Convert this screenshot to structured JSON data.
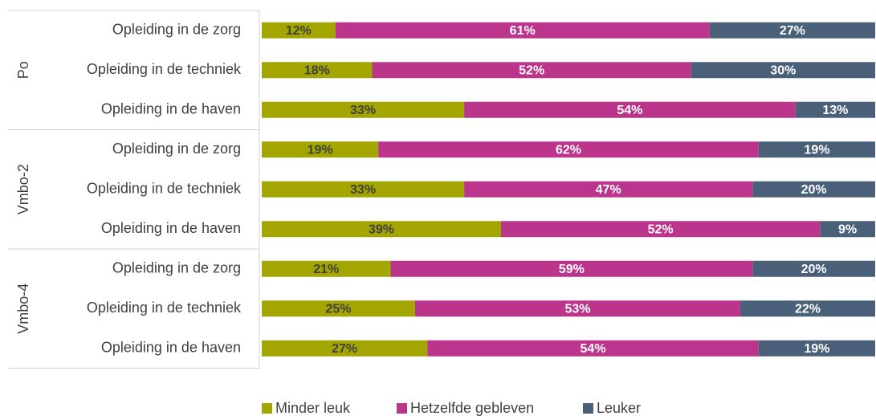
{
  "chart_data": {
    "type": "stacked-bar-horizontal",
    "groups": [
      {
        "name": "Po",
        "categories": [
          "Opleiding in de zorg",
          "Opleiding in de techniek",
          "Opleiding in de haven"
        ]
      },
      {
        "name": "Vmbo-2",
        "categories": [
          "Opleiding in de zorg",
          "Opleiding in de techniek",
          "Opleiding in de haven"
        ]
      },
      {
        "name": "Vmbo-4",
        "categories": [
          "Opleiding in de zorg",
          "Opleiding in de techniek",
          "Opleiding in de haven"
        ]
      }
    ],
    "xlim": [
      0,
      100
    ],
    "legend": "bottom",
    "series": [
      {
        "name": "Minder leuk",
        "color": "#a3a500",
        "label_color": "#404040",
        "values": [
          12,
          18,
          33,
          19,
          33,
          39,
          21,
          25,
          27
        ],
        "value_labels": [
          "12%",
          "18%",
          "33%",
          "19%",
          "33%",
          "39%",
          "21%",
          "25%",
          "27%"
        ]
      },
      {
        "name": "Hetzelfde gebleven",
        "color": "#bb358c",
        "label_color": "#ffffff",
        "values": [
          61,
          52,
          54,
          62,
          47,
          52,
          59,
          53,
          54
        ],
        "value_labels": [
          "61%",
          "52%",
          "54%",
          "62%",
          "47%",
          "52%",
          "59%",
          "53%",
          "54%"
        ]
      },
      {
        "name": "Leuker",
        "color": "#4a6078",
        "label_color": "#ffffff",
        "values": [
          27,
          30,
          13,
          19,
          20,
          9,
          20,
          22,
          19
        ],
        "value_labels": [
          "27%",
          "30%",
          "13%",
          "19%",
          "20%",
          "9%",
          "20%",
          "22%",
          "19%"
        ]
      }
    ]
  }
}
